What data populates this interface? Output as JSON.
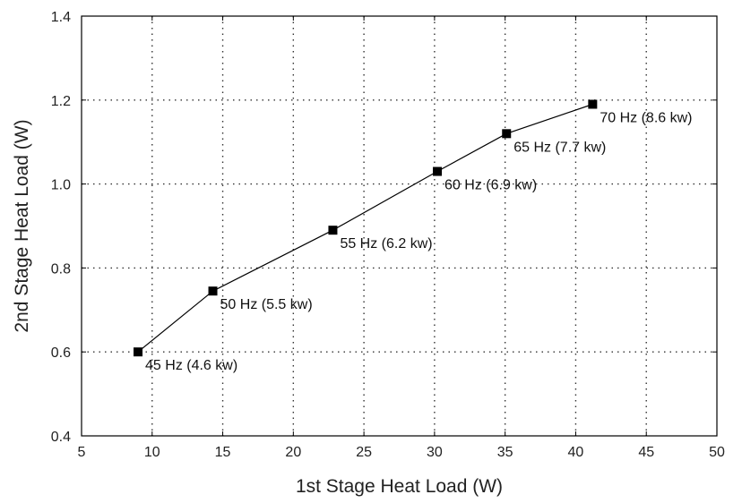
{
  "chart_data": {
    "type": "line",
    "title": "",
    "xlabel": "1st Stage Heat Load (W)",
    "ylabel": "2nd Stage Heat Load (W)",
    "xlim": [
      5,
      50
    ],
    "ylim": [
      0.4,
      1.4
    ],
    "x_ticks": [
      5,
      10,
      15,
      20,
      25,
      30,
      35,
      40,
      45,
      50
    ],
    "y_ticks": [
      0.4,
      0.6,
      0.8,
      1.0,
      1.2,
      1.4
    ],
    "x_tick_labels": [
      "5",
      "10",
      "15",
      "20",
      "25",
      "30",
      "35",
      "40",
      "45",
      "50"
    ],
    "y_tick_labels": [
      "0.4",
      "0.6",
      "0.8",
      "1.0",
      "1.2",
      "1.4"
    ],
    "grid": true,
    "legend": "none",
    "series": [
      {
        "marker": "square",
        "color": "#000000",
        "points": [
          {
            "x": 9.0,
            "y": 0.6,
            "label": "45 Hz (4.6 kw)"
          },
          {
            "x": 14.3,
            "y": 0.745,
            "label": "50 Hz (5.5 kw)"
          },
          {
            "x": 22.8,
            "y": 0.89,
            "label": "55 Hz (6.2 kw)"
          },
          {
            "x": 30.2,
            "y": 1.03,
            "label": "60 Hz (6.9 kw)"
          },
          {
            "x": 35.1,
            "y": 1.12,
            "label": "65 Hz (7.7 kw)"
          },
          {
            "x": 41.2,
            "y": 1.19,
            "label": "70 Hz (8.6 kw)"
          }
        ]
      }
    ]
  }
}
